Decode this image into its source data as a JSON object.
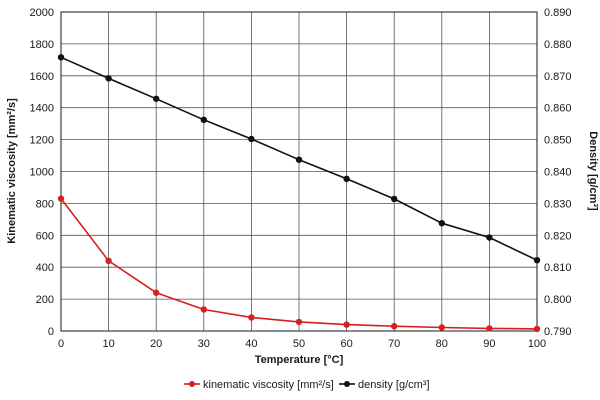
{
  "chart_data": {
    "type": "line",
    "x": [
      0,
      10,
      20,
      30,
      40,
      50,
      60,
      70,
      80,
      90,
      100
    ],
    "xlabel": "Temperature  [°C]",
    "xlim": [
      0,
      100
    ],
    "x_ticks": [
      "0",
      "10",
      "20",
      "30",
      "40",
      "50",
      "60",
      "70",
      "80",
      "90",
      "100"
    ],
    "ylabel_left": "Kinematic viscosity  [mm²/s]",
    "ylim_left": [
      0,
      2000
    ],
    "y_ticks_left": [
      "0",
      "200",
      "400",
      "600",
      "800",
      "1000",
      "1200",
      "1400",
      "1600",
      "1800",
      "2000"
    ],
    "ylabel_right": "Density  [g/cm³]",
    "ylim_right": [
      0.79,
      0.89
    ],
    "y_ticks_right": [
      "0.790",
      "0.800",
      "0.810",
      "0.820",
      "0.830",
      "0.840",
      "0.850",
      "0.860",
      "0.870",
      "0.880",
      "0.890"
    ],
    "grid": true,
    "legend_position": "bottom-center",
    "series": [
      {
        "name": "kinematic viscosity [mm²/s]",
        "axis": "left",
        "color": "#d42020",
        "values": [
          830,
          440,
          240,
          135,
          85,
          57,
          40,
          30,
          22,
          16,
          13
        ]
      },
      {
        "name": "density [g/cm³]",
        "axis": "right",
        "color": "#111111",
        "values": [
          0.8758,
          0.8692,
          0.8628,
          0.8562,
          0.8502,
          0.8437,
          0.8377,
          0.8314,
          0.8238,
          0.8193,
          0.8122
        ]
      }
    ]
  }
}
